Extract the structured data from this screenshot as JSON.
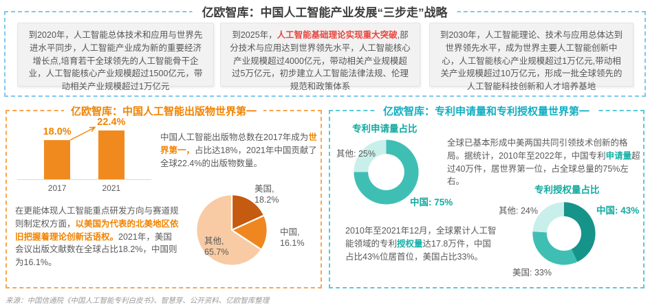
{
  "strategy": {
    "title": "亿欧智库：中国人工智能产业发展“三步走”战略",
    "milestones": [
      {
        "pre": "到2020年，人工智能总体技术和应用与世界先进水平同步，人工智能产业成为新的重要经济增长点,培育若干全球领先的人工智能骨干企业，人工智能核心产业规模超过1500亿元，带动相关产业规模超过1万亿元",
        "highlight": "",
        "post": ""
      },
      {
        "pre": "到2025年，",
        "highlight": "人工智能基础理论实现重大突破",
        "post": ",部分技术与应用达到世界领先水平，人工智能核心产业规模超过4000亿元，带动相关产业规模超过5万亿元，初步建立人工智能法律法规、伦理规范和政策体系"
      },
      {
        "pre": "到2030年，人工智能理论、技术与应用总体达到世界领先水平，成为世界主要人工智能创新中心，人工智能核心产业规模超过1万亿元,带动相关产业规模超过10万亿元，形成一批全球领先的人工智能科技创新和人才培养基地",
        "highlight": "",
        "post": ""
      }
    ]
  },
  "publications": {
    "title": "亿欧智库：中国人工智能出版物世界第一",
    "para1": {
      "pre": "中国人工智能出版物总数在2017年成为",
      "highlight": "世界第一，",
      "post": "占比达18%，2021年中国贡献了全球22.4%的出版物数量。"
    },
    "para2": {
      "pre": "在更能体现人工智能重点研发方向与赛道规则制定权方面，",
      "highlight": "以美国为代表的北美地区依旧把握着理论创新话语权。",
      "post": "2021年，美国会议出版文献数在全球占比18.2%，中国则为16.1%。"
    },
    "pie_labels": [
      {
        "l1": "美国,",
        "l2": "18.2%"
      },
      {
        "l1": "中国,",
        "l2": "16.1%"
      },
      {
        "l1": "其他,",
        "l2": "65.7%"
      }
    ]
  },
  "patents": {
    "title": "亿欧智库：专利申请量和专利授权量世界第一",
    "apply_title": "专利申请量占比",
    "apply_labels": {
      "others": "其他: 25%",
      "china": "中国: 75%"
    },
    "para1": {
      "pre": "全球已基本形成中美两国共同引领技术创新的格局。据统计，2010年至2022年，中国专利",
      "highlight": "申请量",
      "post": "超过40万件，居世界第一位，占全球总量的75%左右。"
    },
    "grant_title": "专利授权量占比",
    "grant_labels": {
      "others": "其他: 24%",
      "china": "中国: 43%",
      "us": "美国: 33%"
    },
    "para2": {
      "pre": "2010年至2021年12月，全球累计人工智能领域的专利",
      "highlight": "授权量",
      "post": "达17.8万件，中国占比43%位居首位，美国占比33%。"
    }
  },
  "footer": {
    "source": "来源：中国信通院《中国人工智能专利白皮书》、智慧芽、公开资料、亿欧智库整理"
  },
  "colors": {
    "orange": "#F08300",
    "red": "#E8463F",
    "teal": "#11A99F",
    "cyan": "#10AEC2",
    "blue_dash": "#7EC8EC"
  },
  "chart_data": [
    {
      "id": "pub_bar",
      "type": "bar",
      "title": "中国人工智能出版物全球占比",
      "categories": [
        "2017",
        "2021"
      ],
      "values": [
        18.0,
        22.4
      ],
      "value_labels": [
        "18.0%",
        "22.4%"
      ],
      "ylim": [
        0,
        25
      ],
      "bar_color": "#F18A1E"
    },
    {
      "id": "pub_pie",
      "type": "pie",
      "title": "2021年会议出版文献数全球占比",
      "labels": [
        "美国",
        "中国",
        "其他"
      ],
      "values": [
        18.2,
        16.1,
        65.7
      ],
      "colors": [
        "#C55A11",
        "#F0861F",
        "#F8CBA4"
      ],
      "inner_ratio": 0,
      "gap": 2
    },
    {
      "id": "patent_apply_donut",
      "type": "donut",
      "title": "专利申请量占比",
      "labels": [
        "中国",
        "其他"
      ],
      "values": [
        75,
        25
      ],
      "colors": [
        "#3FBFB4",
        "#C9EFEB"
      ],
      "inner_ratio": 0.56,
      "gap": 0
    },
    {
      "id": "patent_grant_donut",
      "type": "donut",
      "title": "专利授权量占比",
      "labels": [
        "中国",
        "美国",
        "其他"
      ],
      "values": [
        43,
        33,
        24
      ],
      "colors": [
        "#16948A",
        "#3FBFB4",
        "#C9EFEB"
      ],
      "inner_ratio": 0.55,
      "gap": 0
    }
  ]
}
